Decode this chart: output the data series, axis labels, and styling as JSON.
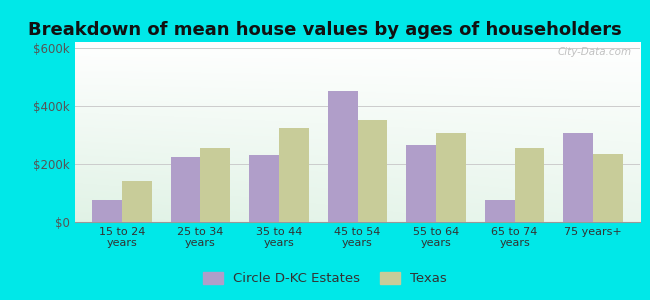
{
  "title": "Breakdown of mean house values by ages of householders",
  "categories": [
    "15 to 24\nyears",
    "25 to 34\nyears",
    "35 to 44\nyears",
    "45 to 54\nyears",
    "55 to 64\nyears",
    "65 to 74\nyears",
    "75 years+"
  ],
  "series1_label": "Circle D-KC Estates",
  "series2_label": "Texas",
  "series1_values": [
    75000,
    225000,
    230000,
    450000,
    265000,
    75000,
    305000
  ],
  "series2_values": [
    140000,
    255000,
    325000,
    350000,
    305000,
    255000,
    235000
  ],
  "series1_color": "#b09ec9",
  "series2_color": "#c8cc99",
  "ylim": [
    0,
    620000
  ],
  "yticks": [
    0,
    200000,
    400000,
    600000
  ],
  "ytick_labels": [
    "$0",
    "$200k",
    "$400k",
    "$600k"
  ],
  "outer_bg": "#00e8e8",
  "watermark": "City-Data.com",
  "bar_width": 0.38,
  "title_fontsize": 13,
  "legend_fontsize": 9.5
}
